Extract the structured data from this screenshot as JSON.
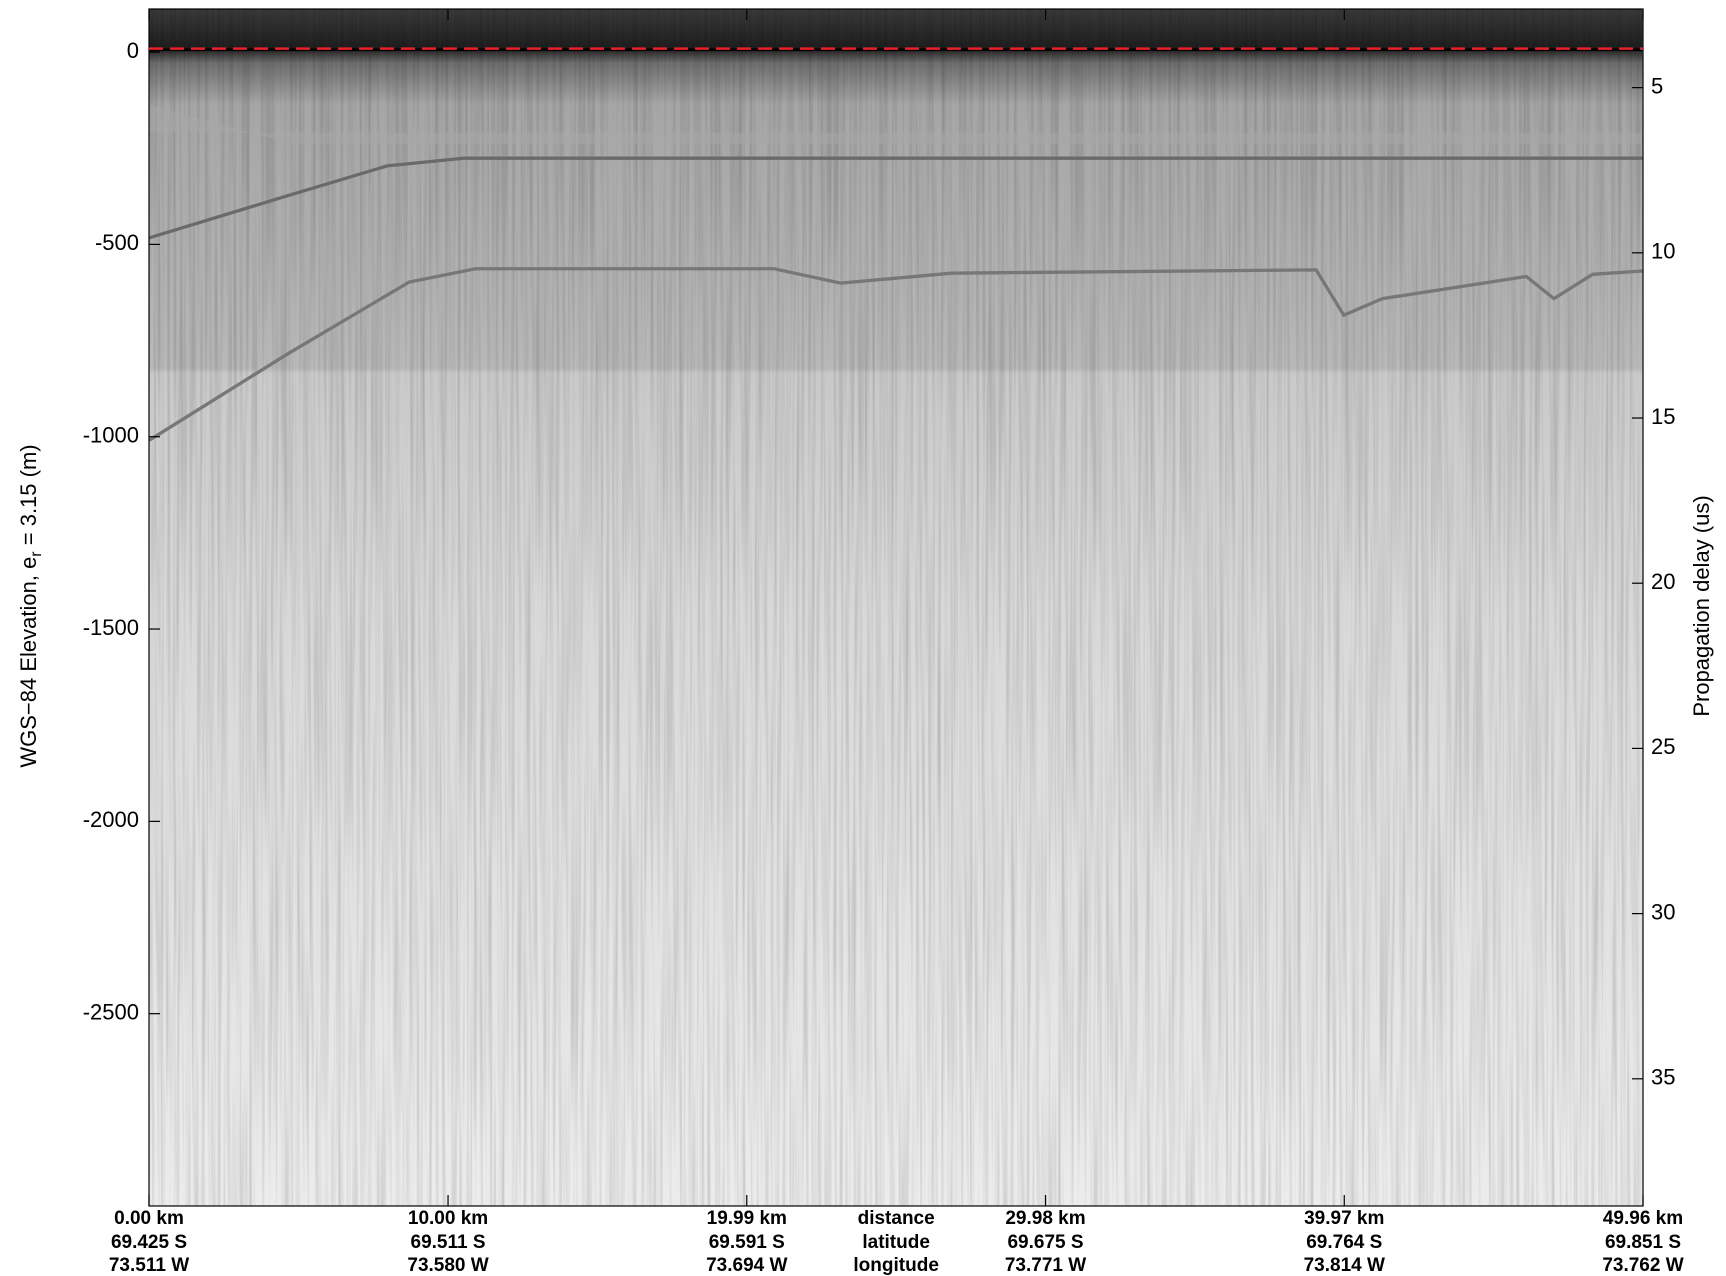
{
  "chart_data": {
    "type": "line",
    "ylabel": [
      "WGS−84 Elevation, e",
      "r",
      " = 3.15 (m)"
    ],
    "y2label": "Propagation delay (us)",
    "xlim": [
      0,
      49.96
    ],
    "xticks": [
      {
        "value": 0,
        "label": "0.00 km"
      },
      {
        "value": 10,
        "label": "10.00 km"
      },
      {
        "value": 19.99,
        "label": "19.99 km"
      },
      {
        "value": 29.98,
        "label": "29.98 km"
      },
      {
        "value": 39.97,
        "label": "39.97 km"
      },
      {
        "value": 49.96,
        "label": "49.96 km"
      }
    ],
    "latitudes": [
      "69.425 S",
      "69.511 S",
      "69.591 S",
      "69.675 S",
      "69.764 S",
      "69.851 S"
    ],
    "longitudes": [
      "73.511 W",
      "73.580 W",
      "73.694 W",
      "73.771 W",
      "73.814 W",
      "73.762 W"
    ],
    "row_labels": [
      "distance",
      "latitude",
      "longitude"
    ],
    "ylim": [
      -3000,
      112
    ],
    "yticks": [
      0,
      -500,
      -1000,
      -1500,
      -2000,
      -2500
    ],
    "y2lim": [
      2.62,
      38.85
    ],
    "y2ticks": [
      5,
      10,
      15,
      20,
      25,
      30,
      35
    ],
    "x": [
      0,
      49.96
    ],
    "series": [
      {
        "color": "#e8202a",
        "values": [
          9,
          9
        ]
      }
    ]
  }
}
